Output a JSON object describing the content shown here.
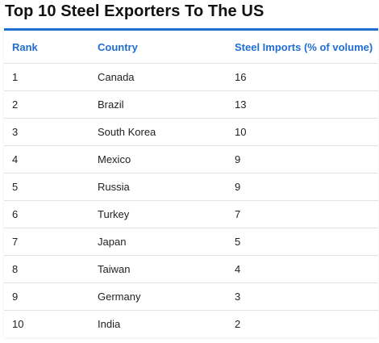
{
  "chart_data": {
    "type": "table",
    "title": "Top 10 Steel Exporters To The US",
    "columns": [
      "Rank",
      "Country",
      "Steel Imports (% of volume)"
    ],
    "rows": [
      {
        "rank": "1",
        "country": "Canada",
        "imports": "16"
      },
      {
        "rank": "2",
        "country": "Brazil",
        "imports": "13"
      },
      {
        "rank": "3",
        "country": "South Korea",
        "imports": "10"
      },
      {
        "rank": "4",
        "country": "Mexico",
        "imports": "9"
      },
      {
        "rank": "5",
        "country": "Russia",
        "imports": "9"
      },
      {
        "rank": "6",
        "country": "Turkey",
        "imports": "7"
      },
      {
        "rank": "7",
        "country": "Japan",
        "imports": "5"
      },
      {
        "rank": "8",
        "country": "Taiwan",
        "imports": "4"
      },
      {
        "rank": "9",
        "country": "Germany",
        "imports": "3"
      },
      {
        "rank": "10",
        "country": "India",
        "imports": "2"
      }
    ],
    "colors": {
      "header_text": "#1f6fd1",
      "accent_border": "#1f6fd1",
      "row_divider": "#e3e3e3",
      "body_text": "#222222"
    }
  }
}
